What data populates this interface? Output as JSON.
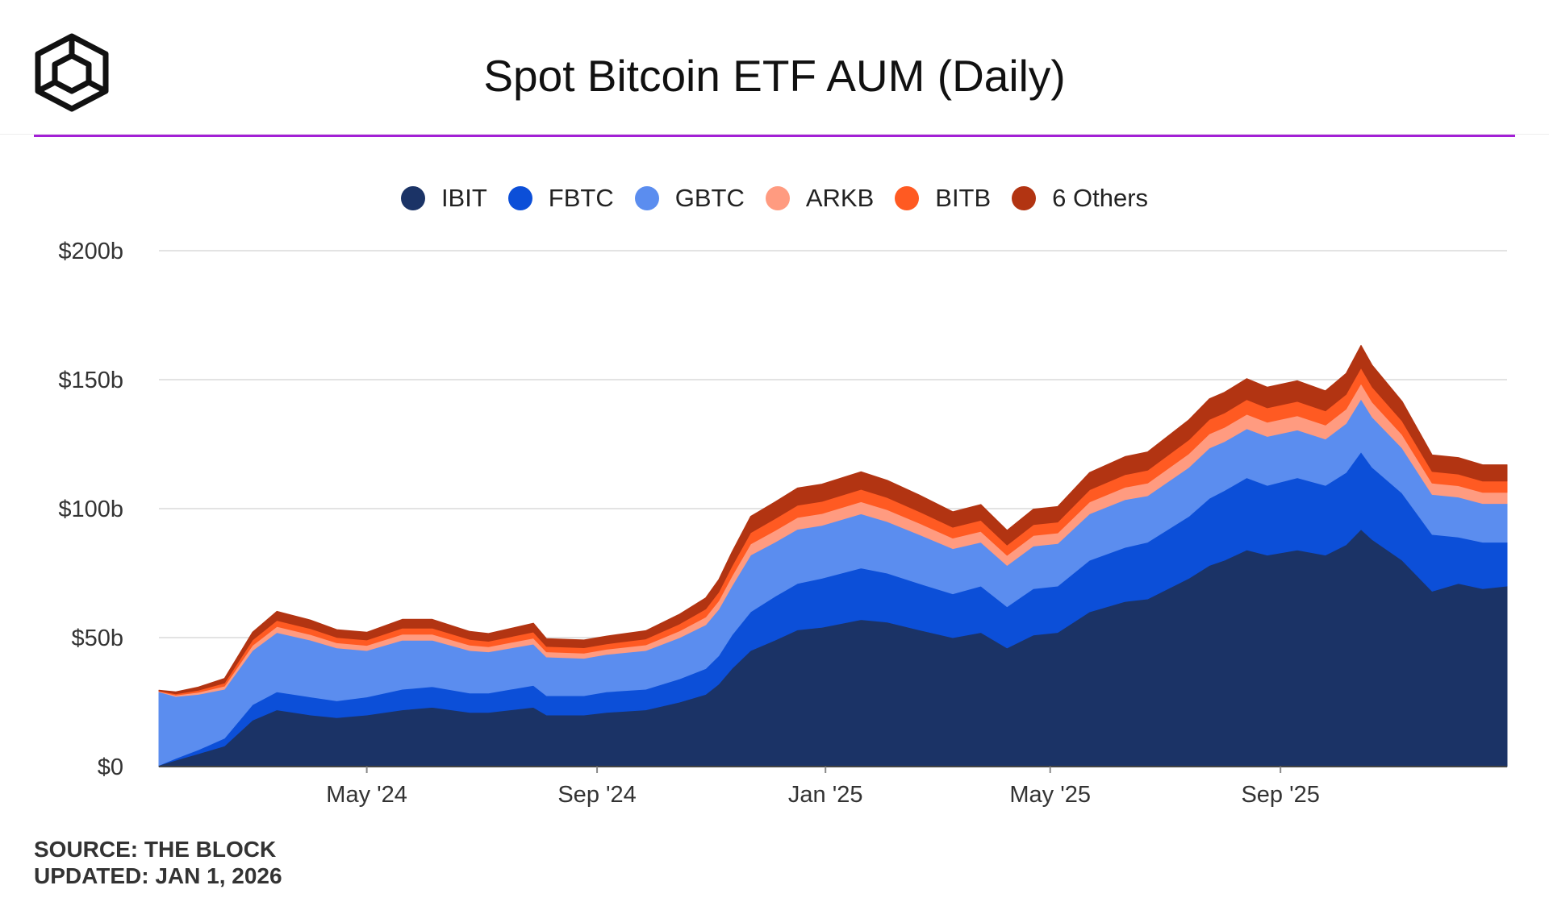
{
  "header": {
    "title": "Spot Bitcoin ETF AUM (Daily)",
    "logo_icon": "cube-logo-icon",
    "accent_rule_color": "#a31fd6"
  },
  "footer": {
    "source": "SOURCE: THE BLOCK",
    "updated": "UPDATED: JAN 1, 2026"
  },
  "chart_data": {
    "type": "area",
    "stacked": true,
    "title": "Spot Bitcoin ETF AUM (Daily)",
    "xlabel": "",
    "ylabel": "",
    "ylim": [
      0,
      200
    ],
    "y_unit": "billion USD",
    "y_ticks": [
      0,
      50,
      100,
      150,
      200
    ],
    "y_tick_labels": [
      "$0",
      "$50b",
      "$100b",
      "$150b",
      "$200b"
    ],
    "x_ticks": [
      "May '24",
      "Sep '24",
      "Jan '25",
      "May '25",
      "Sep '25"
    ],
    "x_tick_values": [
      "2024-05-01",
      "2024-09-01",
      "2025-01-01",
      "2025-05-01",
      "2025-09-01"
    ],
    "x_range": [
      "2024-01-11",
      "2025-12-31"
    ],
    "grid": true,
    "legend_position": "top-center",
    "x": [
      "2024-01-11",
      "2024-01-20",
      "2024-02-01",
      "2024-02-15",
      "2024-03-01",
      "2024-03-14",
      "2024-04-01",
      "2024-04-15",
      "2024-05-01",
      "2024-05-20",
      "2024-06-05",
      "2024-06-25",
      "2024-07-05",
      "2024-07-29",
      "2024-08-05",
      "2024-08-25",
      "2024-09-06",
      "2024-09-27",
      "2024-10-15",
      "2024-10-29",
      "2024-11-05",
      "2024-11-12",
      "2024-11-22",
      "2024-12-05",
      "2024-12-17",
      "2024-12-30",
      "2025-01-20",
      "2025-02-03",
      "2025-02-20",
      "2025-03-10",
      "2025-03-25",
      "2025-04-08",
      "2025-04-22",
      "2025-05-05",
      "2025-05-22",
      "2025-06-10",
      "2025-06-22",
      "2025-07-14",
      "2025-07-25",
      "2025-08-02",
      "2025-08-14",
      "2025-08-25",
      "2025-09-10",
      "2025-09-25",
      "2025-10-06",
      "2025-10-14",
      "2025-10-20",
      "2025-11-05",
      "2025-11-21",
      "2025-12-05",
      "2025-12-18",
      "2025-12-31"
    ],
    "series": [
      {
        "name": "IBIT",
        "color": "#1b3366",
        "values": [
          0.5,
          2.5,
          5,
          8,
          18,
          22,
          20,
          19,
          20,
          22,
          23,
          21,
          21,
          23,
          20,
          20,
          21,
          22,
          25,
          28,
          32,
          38,
          45,
          49,
          53,
          54,
          57,
          56,
          53,
          50,
          52,
          46,
          51,
          52,
          60,
          64,
          65,
          73,
          78,
          80,
          84,
          82,
          84,
          82,
          86,
          92,
          88,
          80,
          68,
          71,
          69,
          70
        ]
      },
      {
        "name": "FBTC",
        "color": "#0c4fd8",
        "values": [
          0,
          0.7,
          1.5,
          3,
          6,
          7,
          7,
          6.5,
          7,
          8,
          8,
          7.5,
          7.5,
          8.5,
          7.5,
          7.5,
          8,
          8,
          9,
          10,
          11,
          13,
          15,
          17,
          18,
          19,
          20,
          19,
          18,
          17,
          18,
          16,
          18,
          18,
          20,
          21,
          22,
          24,
          26,
          27,
          28,
          27,
          28,
          27,
          28,
          30,
          28,
          26,
          22,
          18,
          18,
          17
        ]
      },
      {
        "name": "GBTC",
        "color": "#5b8def",
        "values": [
          28.5,
          24,
          21.5,
          19,
          21,
          23,
          22,
          20.5,
          18,
          19,
          18,
          16.5,
          16,
          16,
          15,
          14.5,
          14.5,
          15,
          16,
          17,
          18,
          19,
          22,
          21,
          21,
          20.5,
          21,
          20,
          19,
          17.5,
          17,
          16,
          16.5,
          16.5,
          18,
          18.5,
          18,
          19,
          19.5,
          19,
          19,
          19,
          18.5,
          18,
          19,
          20.5,
          19.5,
          17.5,
          15.5,
          15.5,
          15,
          15
        ]
      },
      {
        "name": "ARKB",
        "color": "#ff9b80",
        "values": [
          0.2,
          0.5,
          0.8,
          1.2,
          2,
          2.3,
          2.2,
          2,
          2,
          2.3,
          2.3,
          2.1,
          2,
          2.3,
          2,
          2,
          2,
          2.2,
          2.6,
          3,
          3.3,
          3.8,
          4.3,
          4.5,
          4.6,
          4.6,
          4.7,
          4.6,
          4.4,
          4.1,
          4.2,
          3.9,
          4.1,
          4.1,
          4.6,
          4.8,
          4.9,
          5.3,
          5.5,
          5.5,
          5.6,
          5.5,
          5.5,
          5.4,
          5.6,
          6,
          5.8,
          5.2,
          4.4,
          4.4,
          4.3,
          4.3
        ]
      },
      {
        "name": "BITB",
        "color": "#ff5a22",
        "values": [
          0.2,
          0.5,
          0.8,
          1.2,
          2.1,
          2.4,
          2.3,
          2.1,
          2.1,
          2.4,
          2.4,
          2.2,
          2.1,
          2.4,
          2.1,
          2.1,
          2.1,
          2.3,
          2.7,
          3.1,
          3.4,
          3.9,
          4.4,
          4.6,
          4.7,
          4.7,
          4.8,
          4.7,
          4.5,
          4.2,
          4.3,
          4,
          4.2,
          4.2,
          4.7,
          4.9,
          5,
          5.4,
          5.6,
          5.6,
          5.7,
          5.6,
          5.6,
          5.5,
          5.7,
          6.1,
          5.9,
          5.3,
          4.5,
          4.5,
          4.4,
          4.4
        ]
      },
      {
        "name": "6 Others",
        "color": "#b23412",
        "values": [
          0.2,
          0.8,
          1.2,
          1.8,
          3,
          3.5,
          3.3,
          3,
          3,
          3.4,
          3.4,
          3.1,
          3,
          3.4,
          3,
          3,
          3,
          3.2,
          3.8,
          4.3,
          4.8,
          5.5,
          6.3,
          6.5,
          6.7,
          6.7,
          6.8,
          6.7,
          6.4,
          6,
          6.1,
          5.7,
          6,
          6,
          6.7,
          7,
          7.1,
          7.7,
          8,
          8,
          8.1,
          8,
          8,
          7.8,
          8.1,
          8.7,
          8.4,
          7.6,
          6.4,
          6.4,
          6.3,
          6.3
        ]
      }
    ]
  }
}
